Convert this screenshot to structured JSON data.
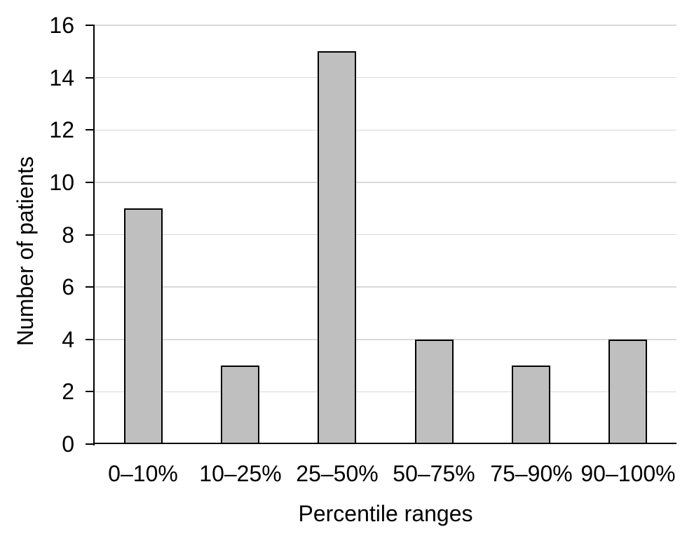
{
  "chart_data": {
    "type": "bar",
    "title": "",
    "categories": [
      "0–10%",
      "10–25%",
      "25–50%",
      "50–75%",
      "75–90%",
      "90–100%"
    ],
    "values": [
      9,
      3,
      15,
      4,
      3,
      4
    ],
    "xlabel": "Percentile ranges",
    "ylabel": "Number of patients",
    "ylim": [
      0,
      16
    ],
    "ytick_step": 2,
    "yticks": [
      0,
      2,
      4,
      6,
      8,
      10,
      12,
      14,
      16
    ],
    "grid": true,
    "legend": false,
    "colors": {
      "bar_fill": "#bfbfbf",
      "bar_border": "#000000",
      "gridline": "#d9d9d9",
      "axis": "#000000",
      "text": "#000000",
      "background": "#ffffff"
    }
  }
}
